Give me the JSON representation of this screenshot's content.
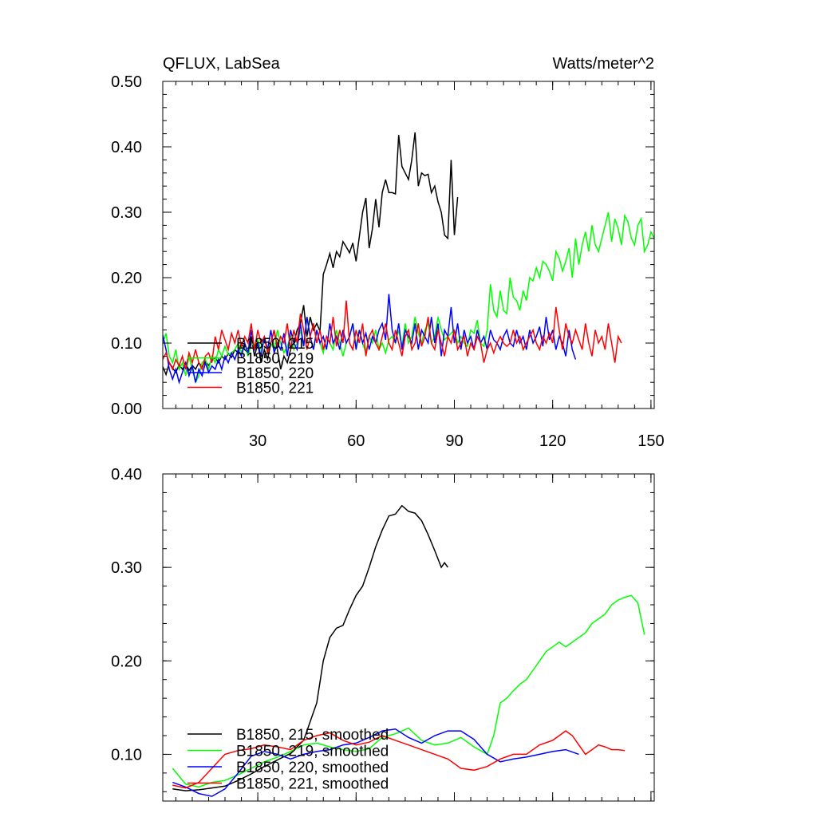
{
  "chart_data": [
    {
      "type": "line",
      "title": "QFLUX, LabSea",
      "units": "Watts/meter^2",
      "xlim": [
        1,
        151
      ],
      "ylim": [
        0,
        0.5
      ],
      "x_ticks": [
        30,
        60,
        90,
        120,
        150
      ],
      "x_tick_labels": [
        "30",
        "60",
        "90",
        "120",
        "150"
      ],
      "y_ticks": [
        0,
        0.1,
        0.2,
        0.3,
        0.4,
        0.5
      ],
      "y_tick_labels": [
        "0.00",
        "0.10",
        "0.20",
        "0.30",
        "0.40",
        "0.50"
      ],
      "legend_position": "bottom-left",
      "series": [
        {
          "name": "B1850, 215",
          "color": "#000000",
          "x_start": 1,
          "values": [
            0.064,
            0.052,
            0.07,
            0.062,
            0.055,
            0.067,
            0.06,
            0.07,
            0.058,
            0.066,
            0.06,
            0.07,
            0.064,
            0.072,
            0.066,
            0.073,
            0.078,
            0.07,
            0.08,
            0.075,
            0.084,
            0.078,
            0.09,
            0.085,
            0.1,
            0.09,
            0.085,
            0.11,
            0.08,
            0.1,
            0.07,
            0.09,
            0.075,
            0.1,
            0.12,
            0.09,
            0.06,
            0.08,
            0.07,
            0.09,
            0.1,
            0.12,
            0.13,
            0.158,
            0.11,
            0.14,
            0.12,
            0.13,
            0.118,
            0.205,
            0.22,
            0.237,
            0.215,
            0.24,
            0.232,
            0.255,
            0.247,
            0.238,
            0.253,
            0.225,
            0.263,
            0.3,
            0.322,
            0.245,
            0.275,
            0.32,
            0.277,
            0.33,
            0.35,
            0.33,
            0.33,
            0.328,
            0.418,
            0.37,
            0.36,
            0.35,
            0.38,
            0.422,
            0.34,
            0.36,
            0.356,
            0.358,
            0.33,
            0.34,
            0.316,
            0.3,
            0.265,
            0.26,
            0.38,
            0.265,
            0.323
          ]
        },
        {
          "name": "B1850, 219",
          "color": "#00ff00",
          "x_start": 1,
          "values": [
            0.1,
            0.115,
            0.08,
            0.07,
            0.09,
            0.06,
            0.07,
            0.05,
            0.08,
            0.06,
            0.04,
            0.05,
            0.07,
            0.075,
            0.06,
            0.08,
            0.07,
            0.09,
            0.08,
            0.095,
            0.082,
            0.085,
            0.09,
            0.1,
            0.085,
            0.1,
            0.08,
            0.1,
            0.095,
            0.105,
            0.09,
            0.11,
            0.085,
            0.1,
            0.09,
            0.12,
            0.1,
            0.085,
            0.095,
            0.11,
            0.09,
            0.1,
            0.12,
            0.095,
            0.14,
            0.11,
            0.09,
            0.12,
            0.1,
            0.085,
            0.11,
            0.1,
            0.09,
            0.12,
            0.1,
            0.08,
            0.1,
            0.11,
            0.13,
            0.095,
            0.12,
            0.1,
            0.085,
            0.11,
            0.1,
            0.12,
            0.09,
            0.1,
            0.085,
            0.105,
            0.11,
            0.1,
            0.12,
            0.095,
            0.13,
            0.1,
            0.11,
            0.14,
            0.115,
            0.1,
            0.12,
            0.13,
            0.1,
            0.11,
            0.14,
            0.12,
            0.105,
            0.11,
            0.115,
            0.12,
            0.1,
            0.11,
            0.1,
            0.095,
            0.12,
            0.115,
            0.135,
            0.1,
            0.095,
            0.12,
            0.19,
            0.15,
            0.14,
            0.18,
            0.15,
            0.145,
            0.2,
            0.17,
            0.165,
            0.15,
            0.18,
            0.165,
            0.2,
            0.195,
            0.215,
            0.2,
            0.225,
            0.22,
            0.21,
            0.195,
            0.24,
            0.23,
            0.21,
            0.225,
            0.245,
            0.2,
            0.26,
            0.22,
            0.25,
            0.27,
            0.24,
            0.28,
            0.25,
            0.24,
            0.26,
            0.28,
            0.3,
            0.255,
            0.29,
            0.275,
            0.25,
            0.295,
            0.285,
            0.26,
            0.25,
            0.28,
            0.29,
            0.24,
            0.25,
            0.27,
            0.26
          ]
        },
        {
          "name": "B1850, 220",
          "color": "#0000ff",
          "x_start": 1,
          "values": [
            0.112,
            0.09,
            0.06,
            0.045,
            0.06,
            0.04,
            0.055,
            0.07,
            0.05,
            0.065,
            0.04,
            0.06,
            0.05,
            0.07,
            0.055,
            0.065,
            0.06,
            0.075,
            0.06,
            0.08,
            0.07,
            0.085,
            0.075,
            0.09,
            0.08,
            0.1,
            0.085,
            0.12,
            0.09,
            0.1,
            0.08,
            0.11,
            0.09,
            0.12,
            0.085,
            0.1,
            0.09,
            0.115,
            0.08,
            0.12,
            0.1,
            0.09,
            0.13,
            0.095,
            0.14,
            0.11,
            0.09,
            0.12,
            0.1,
            0.11,
            0.09,
            0.13,
            0.1,
            0.11,
            0.09,
            0.12,
            0.1,
            0.11,
            0.13,
            0.09,
            0.12,
            0.1,
            0.115,
            0.09,
            0.11,
            0.1,
            0.12,
            0.13,
            0.105,
            0.175,
            0.12,
            0.1,
            0.13,
            0.09,
            0.12,
            0.11,
            0.1,
            0.13,
            0.09,
            0.12,
            0.11,
            0.1,
            0.14,
            0.1,
            0.13,
            0.08,
            0.12,
            0.11,
            0.155,
            0.1,
            0.13,
            0.09,
            0.12,
            0.1,
            0.11,
            0.09,
            0.12,
            0.1,
            0.11,
            0.09,
            0.12,
            0.105,
            0.1,
            0.09,
            0.11,
            0.12,
            0.1,
            0.095,
            0.12,
            0.1,
            0.11,
            0.09,
            0.12,
            0.1,
            0.11,
            0.125,
            0.095,
            0.14,
            0.105,
            0.12,
            0.09,
            0.11,
            0.1,
            0.08,
            0.12,
            0.09,
            0.075
          ]
        },
        {
          "name": "B1850, 221",
          "color": "#ff0000",
          "x_start": 1,
          "values": [
            0.075,
            0.085,
            0.07,
            0.06,
            0.075,
            0.065,
            0.08,
            0.06,
            0.085,
            0.07,
            0.09,
            0.07,
            0.06,
            0.08,
            0.085,
            0.07,
            0.11,
            0.09,
            0.12,
            0.105,
            0.09,
            0.115,
            0.1,
            0.12,
            0.095,
            0.11,
            0.1,
            0.13,
            0.09,
            0.12,
            0.1,
            0.11,
            0.085,
            0.1,
            0.12,
            0.095,
            0.11,
            0.1,
            0.13,
            0.09,
            0.12,
            0.1,
            0.145,
            0.12,
            0.09,
            0.11,
            0.13,
            0.1,
            0.12,
            0.09,
            0.11,
            0.1,
            0.14,
            0.095,
            0.12,
            0.1,
            0.165,
            0.1,
            0.09,
            0.12,
            0.1,
            0.13,
            0.08,
            0.11,
            0.12,
            0.1,
            0.09,
            0.11,
            0.13,
            0.1,
            0.09,
            0.12,
            0.1,
            0.08,
            0.11,
            0.12,
            0.09,
            0.1,
            0.13,
            0.095,
            0.11,
            0.14,
            0.1,
            0.09,
            0.12,
            0.1,
            0.08,
            0.11,
            0.1,
            0.12,
            0.09,
            0.1,
            0.11,
            0.08,
            0.1,
            0.09,
            0.11,
            0.1,
            0.07,
            0.09,
            0.1,
            0.085,
            0.1,
            0.11,
            0.1,
            0.095,
            0.1,
            0.12,
            0.1,
            0.11,
            0.09,
            0.1,
            0.11,
            0.12,
            0.1,
            0.09,
            0.11,
            0.1,
            0.115,
            0.1,
            0.155,
            0.12,
            0.09,
            0.13,
            0.11,
            0.1,
            0.12,
            0.105,
            0.09,
            0.13,
            0.1,
            0.08,
            0.12,
            0.1,
            0.11,
            0.09,
            0.13,
            0.1,
            0.07,
            0.11,
            0.1
          ]
        }
      ]
    },
    {
      "type": "line",
      "xlim": [
        1,
        151
      ],
      "ylim": [
        0.05,
        0.4
      ],
      "x_ticks": [
        30,
        60,
        90,
        120,
        150
      ],
      "y_ticks": [
        0.1,
        0.2,
        0.3,
        0.4
      ],
      "y_tick_labels": [
        "0.10",
        "0.20",
        "0.30",
        "0.40"
      ],
      "legend_position": "bottom-left",
      "series": [
        {
          "name": "B1850, 215, smoothed",
          "color": "#000000",
          "x": [
            4,
            8,
            12,
            16,
            20,
            24,
            28,
            32,
            36,
            40,
            44,
            46,
            48,
            50,
            52,
            54,
            56,
            58,
            60,
            62,
            64,
            66,
            68,
            70,
            72,
            74,
            76,
            78,
            80,
            82,
            84,
            86,
            87,
            88
          ],
          "values": [
            0.063,
            0.061,
            0.062,
            0.064,
            0.066,
            0.072,
            0.079,
            0.087,
            0.094,
            0.101,
            0.115,
            0.135,
            0.155,
            0.2,
            0.225,
            0.235,
            0.238,
            0.255,
            0.27,
            0.28,
            0.3,
            0.322,
            0.34,
            0.355,
            0.357,
            0.366,
            0.36,
            0.358,
            0.35,
            0.335,
            0.318,
            0.3,
            0.305,
            0.3
          ]
        },
        {
          "name": "B1850, 219, smoothed",
          "color": "#00ff00",
          "x": [
            4,
            8,
            12,
            16,
            20,
            24,
            28,
            32,
            36,
            40,
            44,
            48,
            52,
            56,
            60,
            64,
            68,
            72,
            76,
            80,
            84,
            88,
            92,
            96,
            100,
            102,
            104,
            106,
            108,
            110,
            112,
            114,
            116,
            118,
            120,
            122,
            124,
            126,
            128,
            130,
            132,
            134,
            136,
            138,
            140,
            142,
            144,
            146,
            148
          ],
          "values": [
            0.085,
            0.068,
            0.065,
            0.07,
            0.072,
            0.078,
            0.085,
            0.092,
            0.097,
            0.103,
            0.11,
            0.112,
            0.108,
            0.105,
            0.103,
            0.106,
            0.118,
            0.122,
            0.128,
            0.115,
            0.11,
            0.112,
            0.118,
            0.108,
            0.1,
            0.12,
            0.155,
            0.16,
            0.168,
            0.175,
            0.18,
            0.19,
            0.2,
            0.21,
            0.215,
            0.22,
            0.215,
            0.22,
            0.225,
            0.23,
            0.24,
            0.245,
            0.25,
            0.26,
            0.265,
            0.268,
            0.27,
            0.262,
            0.228
          ]
        },
        {
          "name": "B1850, 220, smoothed",
          "color": "#0000ff",
          "x": [
            4,
            8,
            12,
            16,
            20,
            24,
            28,
            32,
            36,
            40,
            44,
            48,
            52,
            56,
            60,
            64,
            68,
            72,
            76,
            80,
            84,
            88,
            92,
            96,
            100,
            104,
            108,
            112,
            116,
            120,
            124,
            128
          ],
          "values": [
            0.07,
            0.065,
            0.058,
            0.055,
            0.063,
            0.08,
            0.098,
            0.103,
            0.1,
            0.095,
            0.1,
            0.103,
            0.105,
            0.11,
            0.112,
            0.118,
            0.125,
            0.127,
            0.118,
            0.112,
            0.12,
            0.125,
            0.125,
            0.116,
            0.1,
            0.092,
            0.095,
            0.097,
            0.1,
            0.103,
            0.105,
            0.1
          ]
        },
        {
          "name": "B1850, 221, smoothed",
          "color": "#ff0000",
          "x": [
            4,
            8,
            12,
            16,
            20,
            24,
            28,
            32,
            36,
            40,
            44,
            48,
            52,
            56,
            60,
            64,
            68,
            72,
            76,
            80,
            84,
            88,
            92,
            96,
            100,
            104,
            108,
            112,
            116,
            120,
            122,
            124,
            126,
            128,
            130,
            132,
            134,
            136,
            138,
            140,
            142
          ],
          "values": [
            0.067,
            0.064,
            0.07,
            0.085,
            0.1,
            0.104,
            0.106,
            0.11,
            0.108,
            0.105,
            0.115,
            0.12,
            0.123,
            0.115,
            0.11,
            0.113,
            0.12,
            0.115,
            0.11,
            0.105,
            0.1,
            0.095,
            0.085,
            0.083,
            0.087,
            0.095,
            0.1,
            0.1,
            0.11,
            0.115,
            0.12,
            0.125,
            0.12,
            0.11,
            0.1,
            0.105,
            0.11,
            0.108,
            0.105,
            0.105,
            0.104
          ]
        }
      ]
    }
  ]
}
